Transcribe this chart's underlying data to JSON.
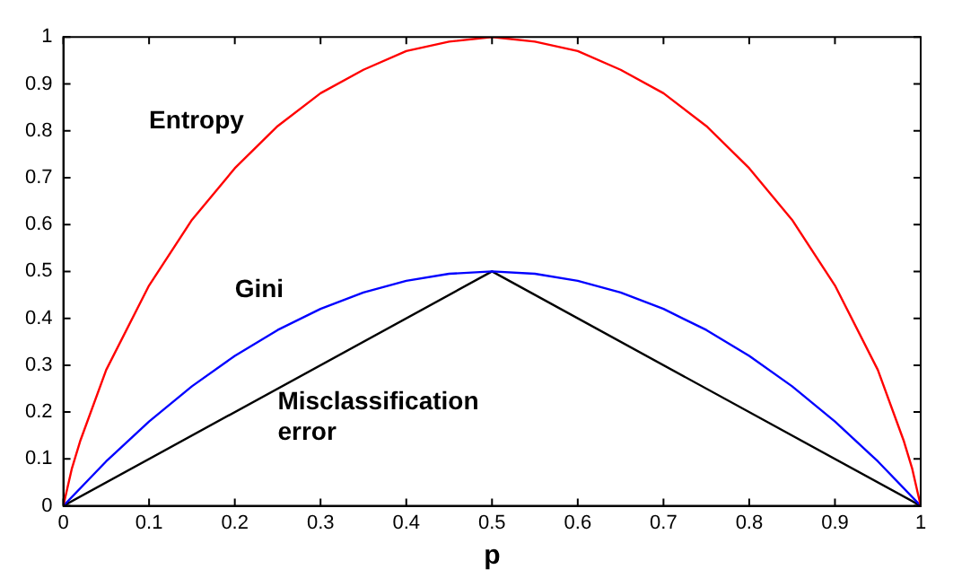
{
  "chart_data": {
    "type": "line",
    "xlabel": "p",
    "xlim": [
      0,
      1
    ],
    "ylim": [
      0,
      1
    ],
    "xticks": [
      0,
      0.1,
      0.2,
      0.3,
      0.4,
      0.5,
      0.6,
      0.7,
      0.8,
      0.9,
      1
    ],
    "yticks": [
      0,
      0.1,
      0.2,
      0.3,
      0.4,
      0.5,
      0.6,
      0.7,
      0.8,
      0.9,
      1
    ],
    "grid": false,
    "legend": false,
    "marker": "none",
    "line_style": "solid",
    "series": [
      {
        "name": "Entropy",
        "color": "#ff0000",
        "x": [
          0,
          0.01,
          0.02,
          0.05,
          0.1,
          0.15,
          0.2,
          0.25,
          0.3,
          0.35,
          0.4,
          0.45,
          0.5,
          0.55,
          0.6,
          0.65,
          0.7,
          0.75,
          0.8,
          0.85,
          0.9,
          0.95,
          0.98,
          0.99,
          1
        ],
        "values": [
          0,
          0.08,
          0.14,
          0.29,
          0.47,
          0.61,
          0.72,
          0.81,
          0.88,
          0.93,
          0.97,
          0.99,
          1,
          0.99,
          0.97,
          0.93,
          0.88,
          0.81,
          0.72,
          0.61,
          0.47,
          0.29,
          0.14,
          0.08,
          0
        ]
      },
      {
        "name": "Gini",
        "color": "#0000ff",
        "x": [
          0,
          0.05,
          0.1,
          0.15,
          0.2,
          0.25,
          0.3,
          0.35,
          0.4,
          0.45,
          0.5,
          0.55,
          0.6,
          0.65,
          0.7,
          0.75,
          0.8,
          0.85,
          0.9,
          0.95,
          1
        ],
        "values": [
          0,
          0.095,
          0.18,
          0.255,
          0.32,
          0.375,
          0.42,
          0.455,
          0.48,
          0.495,
          0.5,
          0.495,
          0.48,
          0.455,
          0.42,
          0.375,
          0.32,
          0.255,
          0.18,
          0.095,
          0
        ]
      },
      {
        "name": "Misclassification error",
        "color": "#000000",
        "x": [
          0,
          0.5,
          1
        ],
        "values": [
          0,
          0.5,
          0
        ]
      }
    ]
  }
}
